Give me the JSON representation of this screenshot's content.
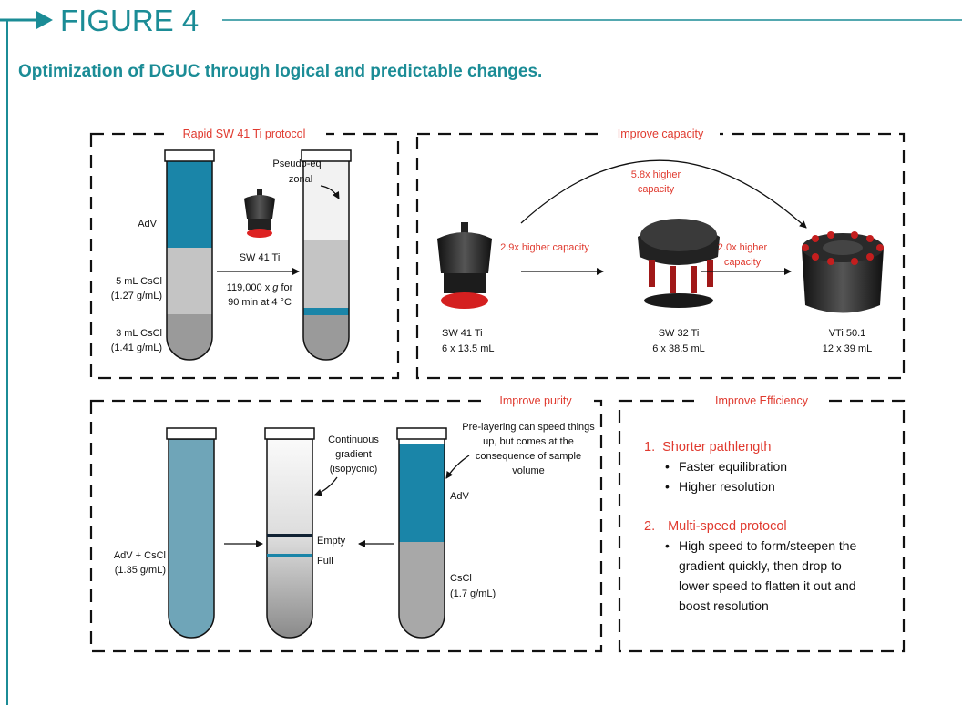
{
  "header": {
    "label": "FIGURE 4",
    "title": "Optimization of DGUC through logical and predictable changes."
  },
  "protocol": {
    "title": "Rapid SW 41 Ti protocol",
    "adv": "AdV",
    "layer1": [
      "5 mL CsCl",
      "(1.27 g/mL)"
    ],
    "layer2": [
      "3 mL CsCl",
      "(1.41 g/mL)"
    ],
    "rotor": "SW 41 Ti",
    "conditions": [
      [
        "119,000 x ",
        "g",
        " for"
      ],
      [
        "90 min at 4 °C"
      ]
    ],
    "result": [
      "Pseudo-eq",
      "zonal"
    ]
  },
  "capacity": {
    "title": "Improve capacity",
    "rotors": [
      {
        "name": "SW 41 Ti",
        "spec": "6 x 13.5 mL"
      },
      {
        "name": "SW 32 Ti",
        "spec": "6 x 38.5 mL"
      },
      {
        "name": "VTi 50.1",
        "spec": "12 x 39 mL"
      }
    ],
    "gains": [
      [
        "2.9x higher capacity"
      ],
      [
        "2.0x higher",
        "capacity"
      ],
      [
        "5.8x higher",
        "capacity"
      ]
    ]
  },
  "purity": {
    "title": "Improve purity",
    "mixed": [
      "AdV + CsCl",
      "(1.35 g/mL)"
    ],
    "gradient": [
      "Continuous",
      "gradient",
      "(isopycnic)"
    ],
    "bands": [
      "Empty",
      "Full"
    ],
    "prelayer_note": [
      "Pre-layering can speed things",
      "up, but comes at the",
      "consequence of sample",
      "volume"
    ],
    "adv": "AdV",
    "cushion": [
      "CsCl",
      "(1.7 g/mL)"
    ]
  },
  "efficiency": {
    "title": "Improve Efficiency",
    "items": [
      {
        "number": "1.",
        "heading": "Shorter pathlength",
        "bullets": [
          [
            "Faster equilibration"
          ],
          [
            "Higher resolution"
          ]
        ]
      },
      {
        "number": "2.",
        "heading": "Multi-speed protocol",
        "bullets": [
          [
            "High speed to form/steepen the",
            "gradient quickly, then drop to",
            "lower speed to flatten it out and",
            "boost resolution"
          ]
        ]
      }
    ]
  }
}
